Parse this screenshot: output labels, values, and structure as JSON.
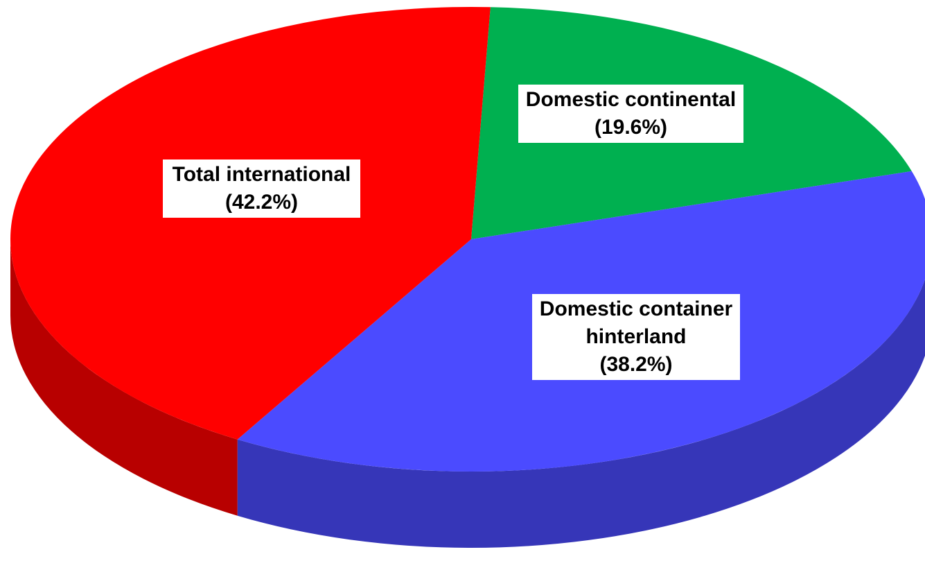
{
  "chart_data": {
    "type": "pie",
    "categories": [
      "Total international",
      "Domestic continental",
      "Domestic container hinterland"
    ],
    "values": [
      42.2,
      19.6,
      38.2
    ],
    "value_labels": [
      "(42.2%)",
      "(19.6%)",
      "(38.2%)"
    ],
    "colors": [
      "#ff0000",
      "#00b050",
      "#4b4bff"
    ]
  }
}
